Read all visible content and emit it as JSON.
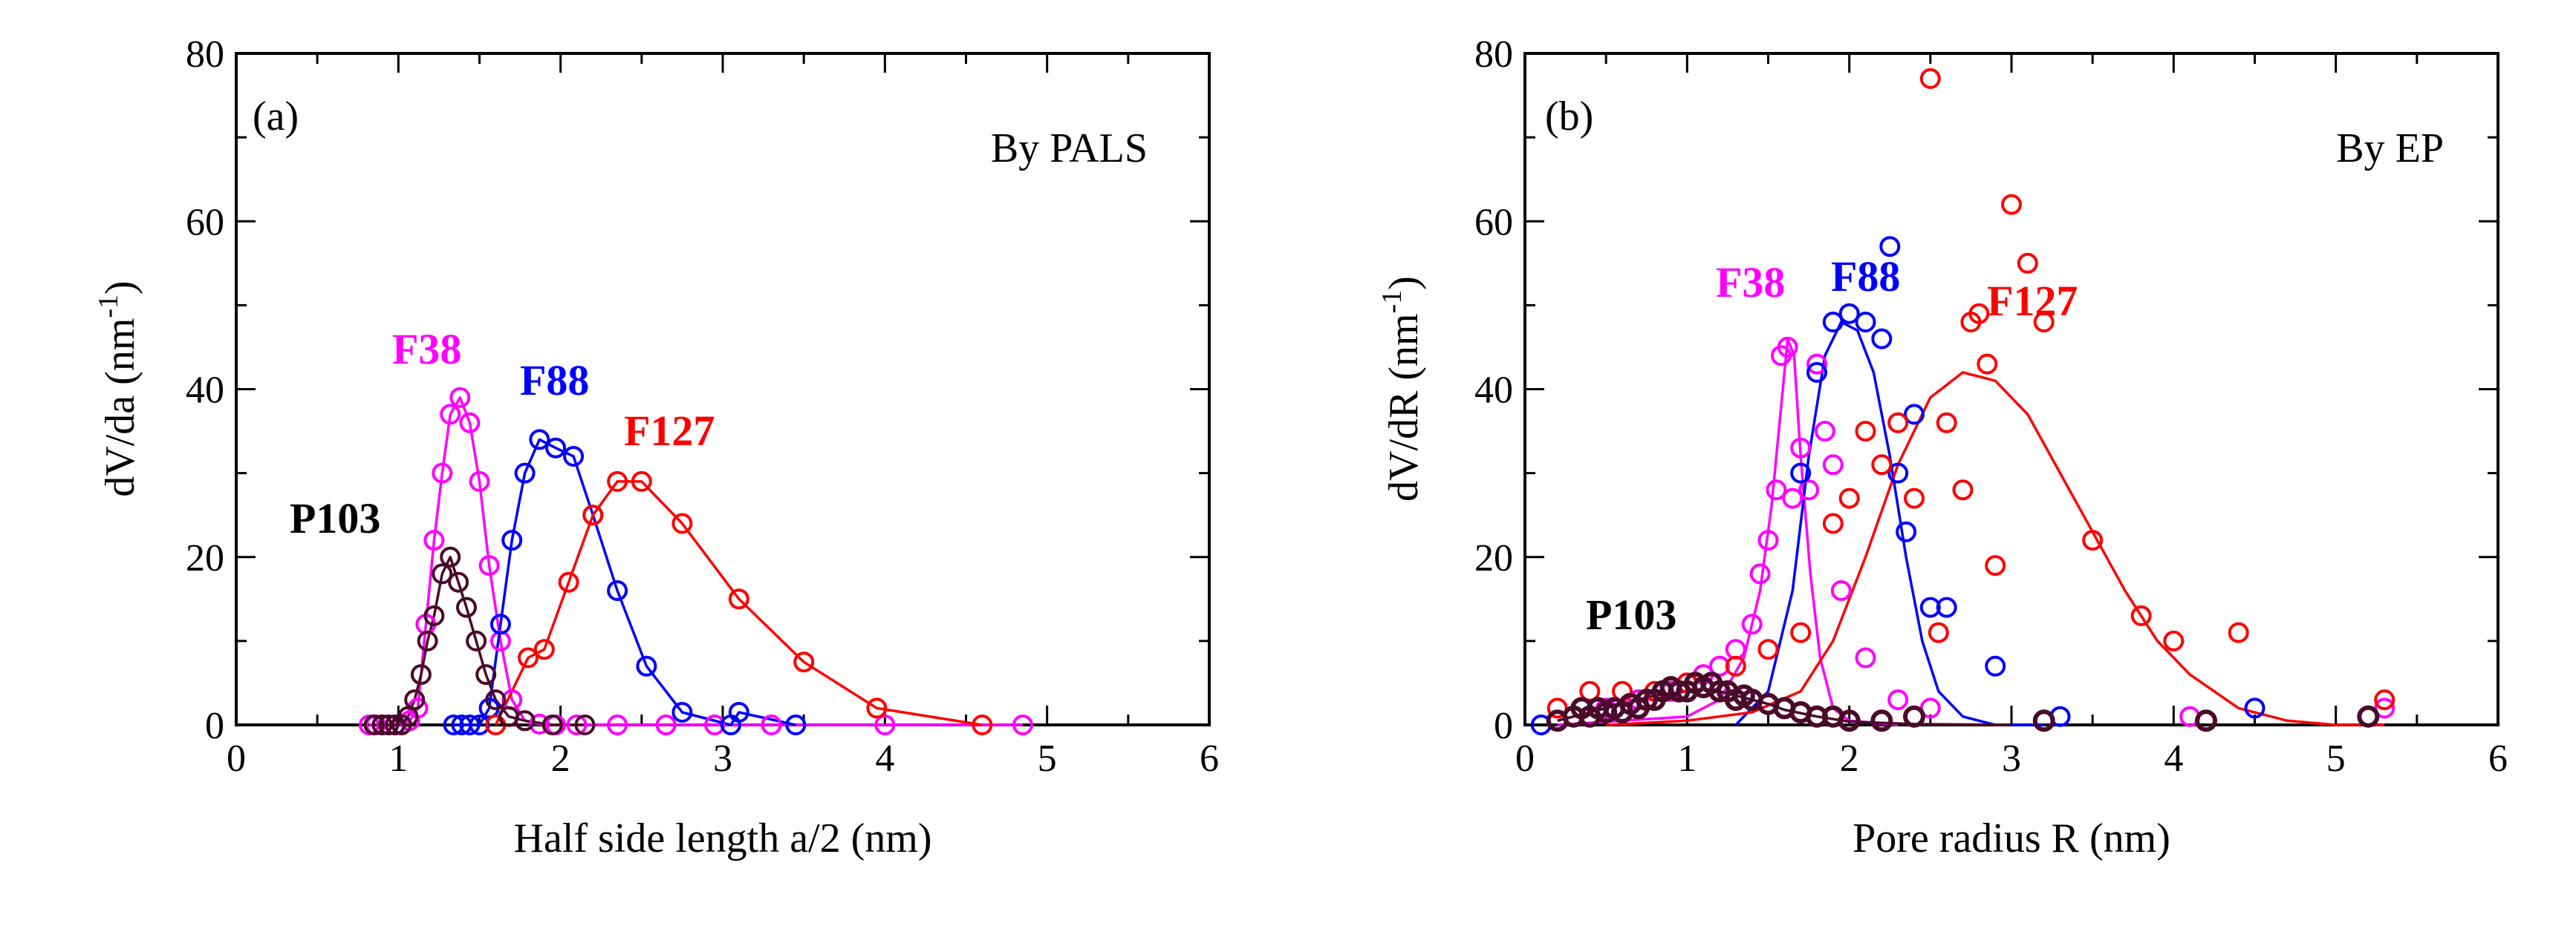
{
  "colors": {
    "F38": "#ff00ff",
    "F88": "#0000ff",
    "F127": "#ff0000",
    "P103": "#4a0a2a"
  },
  "chart_data": [
    {
      "type": "scatter",
      "panel": "(a)",
      "method": "By PALS",
      "xlabel": "Half side length a/2 (nm)",
      "ylabel": "dV/da (nm",
      "ylabel_sup": "-1",
      "ylabel_close": ")",
      "xlim": [
        0,
        6
      ],
      "ylim": [
        0,
        80
      ],
      "xticks": [
        "0",
        "1",
        "2",
        "3",
        "4",
        "5",
        "6"
      ],
      "yticks": [
        "0",
        "20",
        "40",
        "60",
        "80"
      ],
      "series": [
        {
          "name": "F38",
          "color": "#ff00ff",
          "line": true,
          "x": [
            0.82,
            0.86,
            0.9,
            0.94,
            0.98,
            1.02,
            1.07,
            1.12,
            1.17,
            1.22,
            1.27,
            1.32,
            1.38,
            1.44,
            1.5,
            1.56,
            1.63,
            1.7,
            1.78,
            1.87,
            1.97,
            2.1,
            2.35,
            2.65,
            2.95,
            3.3,
            4.0,
            4.85
          ],
          "y": [
            0,
            0,
            0,
            0,
            0,
            0.1,
            0.5,
            2,
            12,
            22,
            30,
            37,
            39,
            36,
            29,
            19,
            10,
            3,
            0.5,
            0.1,
            0,
            0,
            0,
            0,
            0,
            0,
            0,
            0
          ]
        },
        {
          "name": "F88",
          "color": "#0000ff",
          "line": true,
          "x": [
            1.34,
            1.39,
            1.44,
            1.5,
            1.56,
            1.63,
            1.7,
            1.78,
            1.87,
            1.97,
            2.08,
            2.2,
            2.35,
            2.53,
            2.75,
            3.05,
            3.1,
            3.45
          ],
          "y": [
            0,
            0,
            0,
            0,
            2,
            12,
            22,
            30,
            34,
            33,
            32,
            25,
            16,
            7,
            1.5,
            0,
            1.5,
            0
          ]
        },
        {
          "name": "F127",
          "color": "#ff0000",
          "line": true,
          "x": [
            1.6,
            1.8,
            1.9,
            2.05,
            2.2,
            2.35,
            2.5,
            2.75,
            3.1,
            3.5,
            3.95,
            4.6
          ],
          "y": [
            0,
            8,
            9,
            17,
            25,
            29,
            29,
            24,
            15,
            7.5,
            2,
            0
          ]
        },
        {
          "name": "P103",
          "color": "#4a0a2a",
          "line": true,
          "x": [
            0.85,
            0.9,
            0.94,
            0.98,
            1.02,
            1.06,
            1.1,
            1.14,
            1.18,
            1.22,
            1.27,
            1.32,
            1.37,
            1.42,
            1.48,
            1.54,
            1.6,
            1.68,
            1.78,
            1.95,
            2.15
          ],
          "y": [
            0,
            0,
            0,
            0,
            0,
            1,
            3,
            6,
            10,
            13,
            18,
            20,
            17,
            14,
            10,
            6,
            3,
            1,
            0.5,
            0,
            0
          ]
        }
      ]
    },
    {
      "type": "scatter",
      "panel": "(b)",
      "method": "By EP",
      "xlabel": "Pore radius R (nm)",
      "ylabel": "dV/dR (nm",
      "ylabel_sup": "-1",
      "ylabel_close": ")",
      "xlim": [
        0,
        6
      ],
      "ylim": [
        0,
        80
      ],
      "xticks": [
        "0",
        "1",
        "2",
        "3",
        "4",
        "5",
        "6"
      ],
      "yticks": [
        "0",
        "20",
        "40",
        "60",
        "80"
      ],
      "series": [
        {
          "name": "F38",
          "color": "#ff00ff",
          "line": false,
          "x": [
            0.3,
            0.5,
            0.7,
            0.9,
            1.0,
            1.1,
            1.2,
            1.3,
            1.4,
            1.45,
            1.5,
            1.55,
            1.58,
            1.62,
            1.65,
            1.7,
            1.75,
            1.8,
            1.85,
            1.9,
            1.95,
            2.1,
            2.3,
            2.5,
            4.1,
            5.3
          ],
          "y": [
            1,
            2,
            3,
            4,
            5,
            6,
            7,
            9,
            12,
            18,
            22,
            28,
            44,
            45,
            27,
            33,
            28,
            43,
            35,
            31,
            16,
            8,
            3,
            2,
            1,
            2
          ]
        },
        {
          "name": "F88",
          "color": "#0000ff",
          "line": false,
          "x": [
            0.1,
            1.7,
            1.8,
            1.9,
            2.0,
            2.1,
            2.2,
            2.25,
            2.3,
            2.35,
            2.4,
            2.5,
            2.6,
            2.9,
            3.3,
            4.5
          ],
          "y": [
            0,
            30,
            42,
            48,
            49,
            48,
            46,
            57,
            30,
            23,
            37,
            14,
            14,
            7,
            1,
            2
          ]
        },
        {
          "name": "F127",
          "color": "#ff0000",
          "line": false,
          "x": [
            0.2,
            0.4,
            0.6,
            0.8,
            1.0,
            1.3,
            1.5,
            1.7,
            1.9,
            2.0,
            2.1,
            2.2,
            2.3,
            2.4,
            2.5,
            2.55,
            2.6,
            2.7,
            2.75,
            2.8,
            2.85,
            2.9,
            3.0,
            3.1,
            3.2,
            3.5,
            3.8,
            4.0,
            4.4,
            5.3
          ],
          "y": [
            2,
            4,
            4,
            4,
            5,
            7,
            9,
            11,
            24,
            27,
            35,
            31,
            36,
            27,
            77,
            11,
            36,
            28,
            48,
            49,
            43,
            19,
            62,
            55,
            48,
            22,
            13,
            10,
            11,
            3
          ]
        },
        {
          "name": "P103",
          "color": "#4a0a2a",
          "line": false,
          "x": [
            0.2,
            0.3,
            0.35,
            0.4,
            0.45,
            0.5,
            0.55,
            0.6,
            0.65,
            0.7,
            0.75,
            0.8,
            0.85,
            0.9,
            0.95,
            1.0,
            1.05,
            1.1,
            1.15,
            1.2,
            1.25,
            1.3,
            1.35,
            1.4,
            1.5,
            1.6,
            1.7,
            1.8,
            1.9,
            2.0,
            2.2,
            2.4,
            3.2,
            4.2,
            5.2
          ],
          "y": [
            0.5,
            1,
            2,
            1,
            2,
            1.5,
            2,
            1.5,
            2.5,
            2,
            3,
            3,
            4,
            4.5,
            4,
            4,
            5,
            4.5,
            5,
            4,
            4,
            3,
            3.5,
            3,
            2.5,
            2,
            1.5,
            1,
            1,
            0.5,
            0.5,
            1,
            0.5,
            0.5,
            1
          ]
        }
      ],
      "fits": [
        {
          "name": "F38",
          "color": "#ff00ff",
          "x": [
            0.2,
            0.6,
            1.0,
            1.2,
            1.35,
            1.45,
            1.52,
            1.58,
            1.62,
            1.66,
            1.7,
            1.76,
            1.82,
            1.9,
            2.0,
            2.3
          ],
          "y": [
            0,
            0.5,
            1,
            3,
            8,
            16,
            26,
            38,
            46,
            44,
            32,
            18,
            8,
            2,
            0.5,
            0
          ]
        },
        {
          "name": "F88",
          "color": "#0000ff",
          "x": [
            1.3,
            1.5,
            1.65,
            1.75,
            1.85,
            1.95,
            2.05,
            2.15,
            2.25,
            2.35,
            2.45,
            2.55,
            2.7,
            2.9,
            3.2
          ],
          "y": [
            0,
            4,
            16,
            32,
            44,
            48,
            47,
            42,
            32,
            20,
            10,
            4,
            1,
            0,
            0
          ]
        },
        {
          "name": "F127",
          "color": "#ff0000",
          "x": [
            0.5,
            1.0,
            1.4,
            1.7,
            1.9,
            2.1,
            2.3,
            2.5,
            2.7,
            2.9,
            3.1,
            3.3,
            3.5,
            3.7,
            3.9,
            4.1,
            4.4,
            4.7,
            5.0,
            5.3
          ],
          "y": [
            0,
            0.5,
            1.5,
            4,
            10,
            20,
            31,
            39,
            42,
            41,
            37,
            30,
            23,
            16,
            10,
            6,
            2,
            0.5,
            0,
            0
          ]
        },
        {
          "name": "P103",
          "color": "#4a0a2a",
          "x": [
            0.2,
            0.4,
            0.6,
            0.8,
            1.0,
            1.1,
            1.2,
            1.3,
            1.4,
            1.5,
            1.6,
            1.8,
            2.0,
            2.4,
            3.0
          ],
          "y": [
            0.5,
            1.5,
            2.5,
            3.5,
            4,
            4.3,
            4,
            3.5,
            3,
            2.5,
            1.8,
            1,
            0.4,
            0.1,
            0
          ]
        }
      ]
    }
  ]
}
